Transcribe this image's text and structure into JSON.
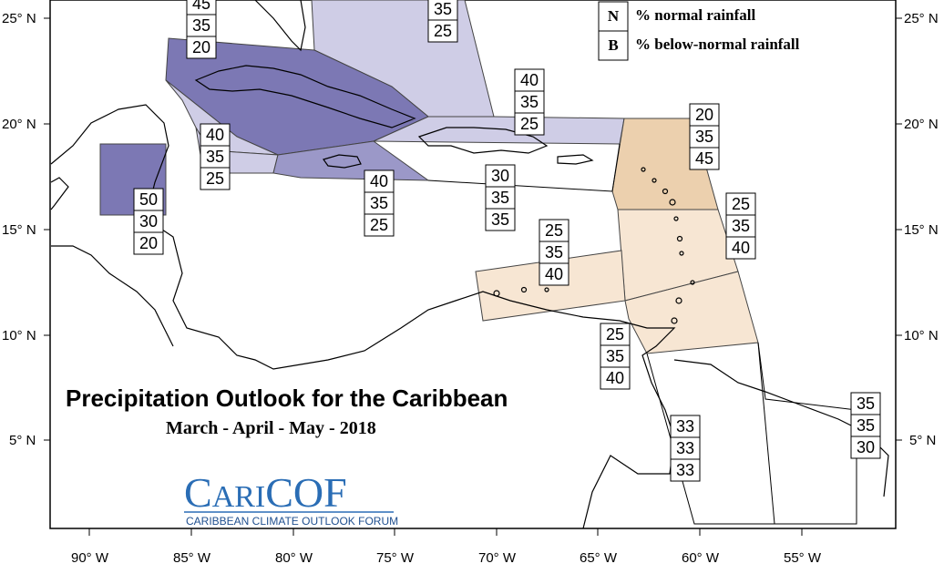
{
  "title": "Precipitation Outlook for the Caribbean",
  "subtitle": "March - April - May - 2018",
  "legend": [
    {
      "key": "N",
      "label": "% normal rainfall"
    },
    {
      "key": "B",
      "label": "% below-normal rainfall"
    }
  ],
  "logo": {
    "name_part1": "C",
    "name_part2": "ARI",
    "name_part3": "COF",
    "tagline": "CARIBBEAN CLIMATE OUTLOOK FORUM",
    "color": "#2a6db5"
  },
  "lon_labels": [
    "90° W",
    "85° W",
    "80° W",
    "75° W",
    "70° W",
    "65° W",
    "60° W",
    "55° W"
  ],
  "lat_labels": [
    "25° N",
    "20° N",
    "15° N",
    "10° N",
    "5° N"
  ],
  "colors": {
    "above_dark": "#7c78b4",
    "above_mid": "#9b98c8",
    "above_light": "#cfcde6",
    "below_mid": "#ecd0ae",
    "below_light": "#f7e6d3",
    "land_line": "#000000"
  },
  "regions": [
    {
      "id": "bahamas-north",
      "probs": [
        "35",
        "25"
      ]
    },
    {
      "id": "cuba-west",
      "probs": [
        "45",
        "35",
        "20"
      ]
    },
    {
      "id": "bahamas-south",
      "probs": [
        "40",
        "35",
        "25"
      ]
    },
    {
      "id": "cayman",
      "probs": [
        "40",
        "35",
        "25"
      ]
    },
    {
      "id": "belize",
      "probs": [
        "50",
        "30",
        "20"
      ]
    },
    {
      "id": "jamaica",
      "probs": [
        "40",
        "35",
        "25"
      ]
    },
    {
      "id": "hispaniola",
      "probs": [
        "30",
        "35",
        "35"
      ]
    },
    {
      "id": "leewards",
      "probs": [
        "20",
        "35",
        "45"
      ]
    },
    {
      "id": "windwards",
      "probs": [
        "25",
        "35",
        "40"
      ]
    },
    {
      "id": "abc-islands",
      "probs": [
        "25",
        "35",
        "40"
      ]
    },
    {
      "id": "trinidad",
      "probs": [
        "25",
        "35",
        "40"
      ]
    },
    {
      "id": "guyana",
      "probs": [
        "33",
        "33",
        "33"
      ]
    },
    {
      "id": "suriname",
      "probs": [
        "35",
        "35",
        "30"
      ]
    }
  ]
}
